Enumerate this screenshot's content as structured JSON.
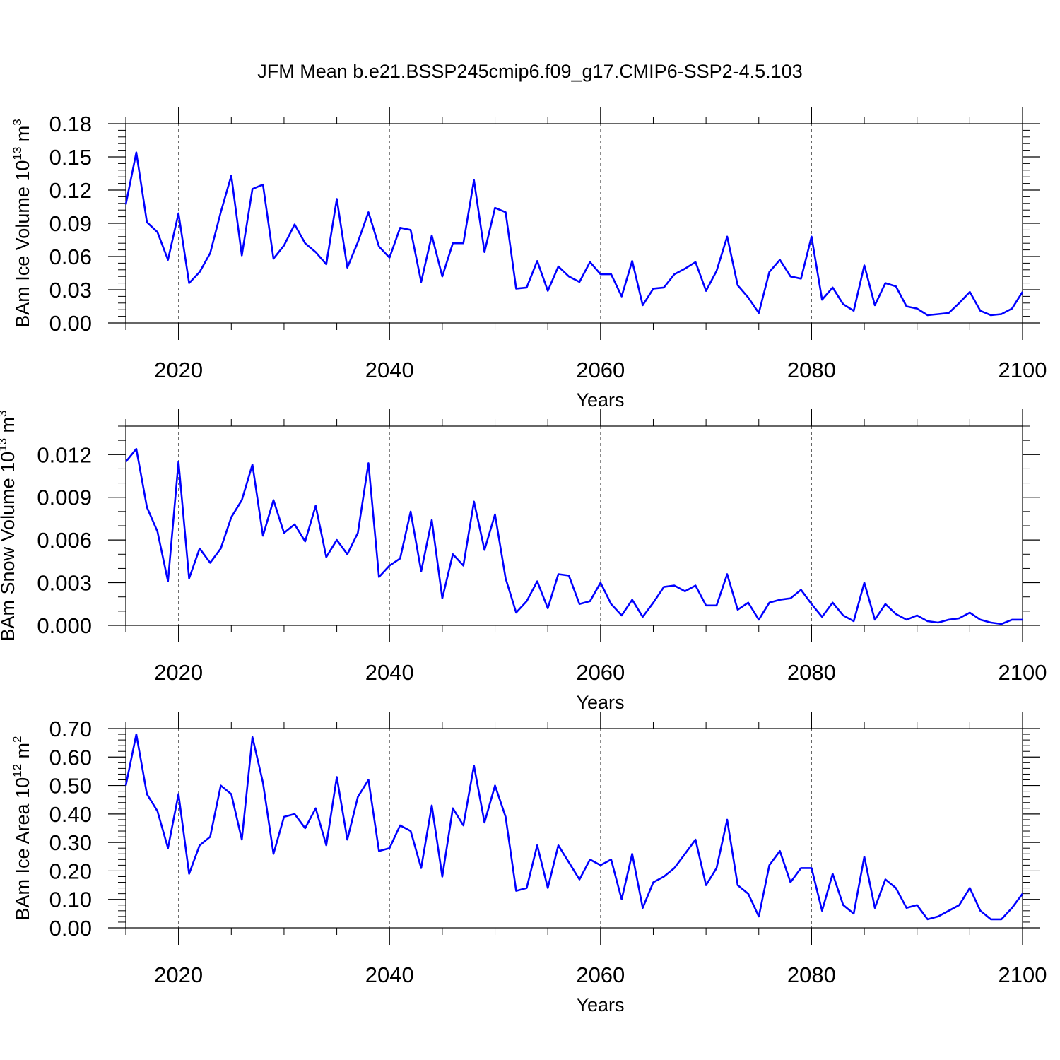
{
  "title": "JFM Mean b.e21.BSSP245cmip6.f09_g17.CMIP6-SSP2-4.5.103",
  "line_color": "#0000ff",
  "chart_data": [
    {
      "type": "line",
      "ylabel": {
        "text": "BAm Ice Volume 10",
        "exp": "13",
        "unit": " m",
        "unit_exp": "3"
      },
      "xlabel": "Years",
      "xlim": [
        2015,
        2100
      ],
      "ylim": [
        0.0,
        0.18
      ],
      "yticks": [
        0.0,
        0.03,
        0.06,
        0.09,
        0.12,
        0.15,
        0.18
      ],
      "ytick_labels": [
        "0.00",
        "0.03",
        "0.06",
        "0.09",
        "0.12",
        "0.15",
        "0.18"
      ],
      "y_minor_step": 0.006,
      "xticks": [
        2020,
        2040,
        2060,
        2080,
        2100
      ],
      "xtick_labels": [
        "2020",
        "2040",
        "2060",
        "2080",
        "2100"
      ],
      "x_minor_step": 5,
      "grid": "vertical dashed",
      "series": [
        {
          "name": "BAm Ice Volume",
          "x": [
            2015,
            2016,
            2017,
            2018,
            2019,
            2020,
            2021,
            2022,
            2023,
            2024,
            2025,
            2026,
            2027,
            2028,
            2029,
            2030,
            2031,
            2032,
            2033,
            2034,
            2035,
            2036,
            2037,
            2038,
            2039,
            2040,
            2041,
            2042,
            2043,
            2044,
            2045,
            2046,
            2047,
            2048,
            2049,
            2050,
            2051,
            2052,
            2053,
            2054,
            2055,
            2056,
            2057,
            2058,
            2059,
            2060,
            2061,
            2062,
            2063,
            2064,
            2065,
            2066,
            2067,
            2068,
            2069,
            2070,
            2071,
            2072,
            2073,
            2074,
            2075,
            2076,
            2077,
            2078,
            2079,
            2080,
            2081,
            2082,
            2083,
            2084,
            2085,
            2086,
            2087,
            2088,
            2089,
            2090,
            2091,
            2092,
            2093,
            2094,
            2095,
            2096,
            2097,
            2098,
            2099,
            2100
          ],
          "values": [
            0.107,
            0.154,
            0.091,
            0.082,
            0.057,
            0.099,
            0.036,
            0.046,
            0.063,
            0.1,
            0.133,
            0.061,
            0.121,
            0.125,
            0.058,
            0.07,
            0.089,
            0.072,
            0.064,
            0.053,
            0.112,
            0.05,
            0.073,
            0.1,
            0.069,
            0.059,
            0.086,
            0.084,
            0.037,
            0.079,
            0.042,
            0.072,
            0.072,
            0.129,
            0.064,
            0.104,
            0.1,
            0.031,
            0.032,
            0.056,
            0.029,
            0.051,
            0.042,
            0.037,
            0.055,
            0.044,
            0.044,
            0.024,
            0.056,
            0.016,
            0.031,
            0.032,
            0.044,
            0.049,
            0.055,
            0.029,
            0.047,
            0.078,
            0.034,
            0.023,
            0.009,
            0.046,
            0.057,
            0.042,
            0.04,
            0.078,
            0.021,
            0.032,
            0.017,
            0.011,
            0.052,
            0.016,
            0.036,
            0.033,
            0.015,
            0.013,
            0.007,
            0.008,
            0.009,
            0.018,
            0.028,
            0.011,
            0.007,
            0.008,
            0.013,
            0.028
          ]
        }
      ]
    },
    {
      "type": "line",
      "ylabel": {
        "text": "BAm Snow Volume 10",
        "exp": "13",
        "unit": " m",
        "unit_exp": "3"
      },
      "xlabel": "Years",
      "xlim": [
        2015,
        2100
      ],
      "ylim": [
        0.0,
        0.014
      ],
      "yticks": [
        0.0,
        0.003,
        0.006,
        0.009,
        0.012
      ],
      "ytick_labels": [
        "0.000",
        "0.003",
        "0.006",
        "0.009",
        "0.012"
      ],
      "y_minor_step": 0.001,
      "xticks": [
        2020,
        2040,
        2060,
        2080,
        2100
      ],
      "xtick_labels": [
        "2020",
        "2040",
        "2060",
        "2080",
        "2100"
      ],
      "x_minor_step": 5,
      "grid": "vertical dashed",
      "series": [
        {
          "name": "BAm Snow Volume",
          "x": [
            2015,
            2016,
            2017,
            2018,
            2019,
            2020,
            2021,
            2022,
            2023,
            2024,
            2025,
            2026,
            2027,
            2028,
            2029,
            2030,
            2031,
            2032,
            2033,
            2034,
            2035,
            2036,
            2037,
            2038,
            2039,
            2040,
            2041,
            2042,
            2043,
            2044,
            2045,
            2046,
            2047,
            2048,
            2049,
            2050,
            2051,
            2052,
            2053,
            2054,
            2055,
            2056,
            2057,
            2058,
            2059,
            2060,
            2061,
            2062,
            2063,
            2064,
            2065,
            2066,
            2067,
            2068,
            2069,
            2070,
            2071,
            2072,
            2073,
            2074,
            2075,
            2076,
            2077,
            2078,
            2079,
            2080,
            2081,
            2082,
            2083,
            2084,
            2085,
            2086,
            2087,
            2088,
            2089,
            2090,
            2091,
            2092,
            2093,
            2094,
            2095,
            2096,
            2097,
            2098,
            2099,
            2100
          ],
          "values": [
            0.0115,
            0.0124,
            0.0083,
            0.0066,
            0.0031,
            0.0115,
            0.0033,
            0.0054,
            0.0044,
            0.0054,
            0.0076,
            0.0088,
            0.0113,
            0.0063,
            0.0088,
            0.0065,
            0.0071,
            0.0059,
            0.0084,
            0.0048,
            0.006,
            0.005,
            0.0065,
            0.0114,
            0.0034,
            0.0042,
            0.0047,
            0.008,
            0.0038,
            0.0074,
            0.0019,
            0.005,
            0.0042,
            0.0087,
            0.0053,
            0.0078,
            0.0033,
            0.0009,
            0.0017,
            0.0031,
            0.0012,
            0.0036,
            0.0035,
            0.0015,
            0.0017,
            0.003,
            0.0015,
            0.0007,
            0.0018,
            0.0006,
            0.0016,
            0.0027,
            0.0028,
            0.0024,
            0.0028,
            0.0014,
            0.0014,
            0.0036,
            0.0011,
            0.0016,
            0.0004,
            0.0016,
            0.0018,
            0.0019,
            0.0025,
            0.0015,
            0.0006,
            0.0016,
            0.0007,
            0.0003,
            0.003,
            0.0004,
            0.0015,
            0.0008,
            0.0004,
            0.0007,
            0.0003,
            0.0002,
            0.0004,
            0.0005,
            0.0009,
            0.0004,
            0.0002,
            0.0001,
            0.0004,
            0.0004
          ]
        }
      ]
    },
    {
      "type": "line",
      "ylabel": {
        "text": "BAm Ice Area 10",
        "exp": "12",
        "unit": " m",
        "unit_exp": "2"
      },
      "xlabel": "Years",
      "xlim": [
        2015,
        2100
      ],
      "ylim": [
        0.0,
        0.7
      ],
      "yticks": [
        0.0,
        0.1,
        0.2,
        0.3,
        0.4,
        0.5,
        0.6,
        0.7
      ],
      "ytick_labels": [
        "0.00",
        "0.10",
        "0.20",
        "0.30",
        "0.40",
        "0.50",
        "0.60",
        "0.70"
      ],
      "y_minor_step": 0.02,
      "xticks": [
        2020,
        2040,
        2060,
        2080,
        2100
      ],
      "xtick_labels": [
        "2020",
        "2040",
        "2060",
        "2080",
        "2100"
      ],
      "x_minor_step": 5,
      "grid": "vertical dashed",
      "series": [
        {
          "name": "BAm Ice Area",
          "x": [
            2015,
            2016,
            2017,
            2018,
            2019,
            2020,
            2021,
            2022,
            2023,
            2024,
            2025,
            2026,
            2027,
            2028,
            2029,
            2030,
            2031,
            2032,
            2033,
            2034,
            2035,
            2036,
            2037,
            2038,
            2039,
            2040,
            2041,
            2042,
            2043,
            2044,
            2045,
            2046,
            2047,
            2048,
            2049,
            2050,
            2051,
            2052,
            2053,
            2054,
            2055,
            2056,
            2057,
            2058,
            2059,
            2060,
            2061,
            2062,
            2063,
            2064,
            2065,
            2066,
            2067,
            2068,
            2069,
            2070,
            2071,
            2072,
            2073,
            2074,
            2075,
            2076,
            2077,
            2078,
            2079,
            2080,
            2081,
            2082,
            2083,
            2084,
            2085,
            2086,
            2087,
            2088,
            2089,
            2090,
            2091,
            2092,
            2093,
            2094,
            2095,
            2096,
            2097,
            2098,
            2099,
            2100
          ],
          "values": [
            0.5,
            0.68,
            0.47,
            0.41,
            0.28,
            0.47,
            0.19,
            0.29,
            0.32,
            0.5,
            0.47,
            0.31,
            0.67,
            0.51,
            0.26,
            0.39,
            0.4,
            0.35,
            0.42,
            0.29,
            0.53,
            0.31,
            0.46,
            0.52,
            0.27,
            0.28,
            0.36,
            0.34,
            0.21,
            0.43,
            0.18,
            0.42,
            0.36,
            0.57,
            0.37,
            0.5,
            0.39,
            0.13,
            0.14,
            0.29,
            0.14,
            0.29,
            0.23,
            0.17,
            0.24,
            0.22,
            0.24,
            0.1,
            0.26,
            0.07,
            0.16,
            0.18,
            0.21,
            0.26,
            0.31,
            0.15,
            0.21,
            0.38,
            0.15,
            0.12,
            0.04,
            0.22,
            0.27,
            0.16,
            0.21,
            0.21,
            0.06,
            0.19,
            0.08,
            0.05,
            0.25,
            0.07,
            0.17,
            0.14,
            0.07,
            0.08,
            0.03,
            0.04,
            0.06,
            0.08,
            0.14,
            0.06,
            0.03,
            0.03,
            0.07,
            0.12
          ]
        }
      ]
    }
  ]
}
